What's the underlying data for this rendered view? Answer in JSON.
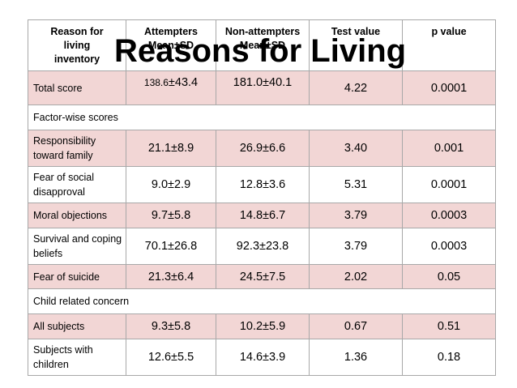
{
  "slide_title": "Reasons for Living",
  "headers": {
    "reason": "Reason for living inventory",
    "attempters": "Attempters Mean±SD",
    "non_attempters": "Non-attempters Mean±SD",
    "test_value": "Test value",
    "p_value": "p value"
  },
  "rows": {
    "total": {
      "label": "Total score",
      "att_mean": "138.6",
      "att_sd": "±43.4",
      "non": "181.0±40.1",
      "test": "4.22",
      "p": "0.0001"
    },
    "factor_section": "Factor-wise scores",
    "responsibility": {
      "label": "Responsibility toward family",
      "att": "21.1±8.9",
      "non": "26.9±6.6",
      "test": "3.40",
      "p": "0.001"
    },
    "fear_social": {
      "label": "Fear of social disapproval",
      "att": "9.0±2.9",
      "non": "12.8±3.6",
      "test": "5.31",
      "p": "0.0001"
    },
    "moral": {
      "label": "Moral objections",
      "att": "9.7±5.8",
      "non": "14.8±6.7",
      "test": "3.79",
      "p": "0.0003"
    },
    "survival": {
      "label": "Survival and coping beliefs",
      "att": "70.1±26.8",
      "non": "92.3±23.8",
      "test": "3.79",
      "p": "0.0003"
    },
    "fear_suicide": {
      "label": "Fear of suicide",
      "att": "21.3±6.4",
      "non": "24.5±7.5",
      "test": "2.02",
      "p": "0.05"
    },
    "child_section": "Child related concern",
    "all_subjects": {
      "label": "All subjects",
      "att": "9.3±5.8",
      "non": "10.2±5.9",
      "test": "0.67",
      "p": "0.51"
    },
    "with_children": {
      "label": "Subjects with children",
      "att": "12.6±5.5",
      "non": "14.6±3.9",
      "test": "1.36",
      "p": "0.18"
    }
  }
}
